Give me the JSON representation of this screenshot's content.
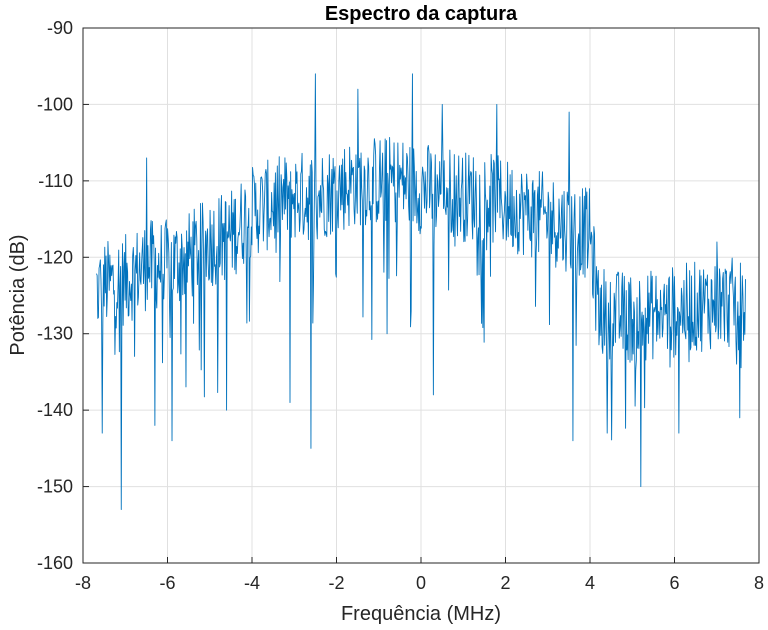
{
  "chart_data": {
    "type": "line",
    "title": "Espectro da captura",
    "xlabel": "Frequência (MHz)",
    "ylabel": "Potência (dB)",
    "xlim": [
      -8,
      8
    ],
    "ylim": [
      -160,
      -90
    ],
    "xticks": [
      -8,
      -6,
      -4,
      -2,
      0,
      2,
      4,
      6,
      8
    ],
    "yticks": [
      -90,
      -100,
      -110,
      -120,
      -130,
      -140,
      -150,
      -160
    ],
    "grid": true,
    "series": [
      {
        "color": "#0072bd",
        "x_range": [
          -7.68,
          7.68
        ],
        "points": 1024,
        "envelope": [
          [
            -7.68,
            -124
          ],
          [
            -7.0,
            -123
          ],
          [
            -6.5,
            -121
          ],
          [
            -6.0,
            -121
          ],
          [
            -5.5,
            -120
          ],
          [
            -5.0,
            -118
          ],
          [
            -4.5,
            -117
          ],
          [
            -4.0,
            -114
          ],
          [
            -3.5,
            -113
          ],
          [
            -3.0,
            -112
          ],
          [
            -2.5,
            -112
          ],
          [
            -2.0,
            -111
          ],
          [
            -1.5,
            -110
          ],
          [
            -1.0,
            -110
          ],
          [
            -0.5,
            -110
          ],
          [
            0.0,
            -111
          ],
          [
            0.5,
            -111
          ],
          [
            1.0,
            -112
          ],
          [
            1.5,
            -112
          ],
          [
            2.0,
            -113
          ],
          [
            2.5,
            -114
          ],
          [
            3.0,
            -115
          ],
          [
            3.5,
            -116
          ],
          [
            4.0,
            -117
          ],
          [
            4.2,
            -127
          ],
          [
            5.0,
            -128
          ],
          [
            6.0,
            -127
          ],
          [
            7.0,
            -126
          ],
          [
            7.68,
            -126
          ]
        ],
        "dips": [
          [
            -7.65,
            -128
          ],
          [
            -7.55,
            -143
          ],
          [
            -7.1,
            -153
          ],
          [
            -6.3,
            -142
          ],
          [
            -5.9,
            -144
          ],
          [
            -4.6,
            -140
          ],
          [
            -3.1,
            -139
          ],
          [
            -2.6,
            -145
          ],
          [
            -0.8,
            -130
          ],
          [
            0.3,
            -138
          ],
          [
            3.6,
            -144
          ],
          [
            4.4,
            -143
          ],
          [
            5.2,
            -150
          ],
          [
            6.1,
            -143
          ],
          [
            7.55,
            -141
          ]
        ],
        "peaks": [
          [
            -6.5,
            -107
          ],
          [
            -2.5,
            -96
          ],
          [
            -1.5,
            -98
          ],
          [
            -0.2,
            -96
          ],
          [
            0.5,
            -100
          ],
          [
            1.8,
            -100
          ],
          [
            3.5,
            -101
          ],
          [
            7.0,
            -118
          ]
        ]
      }
    ]
  }
}
